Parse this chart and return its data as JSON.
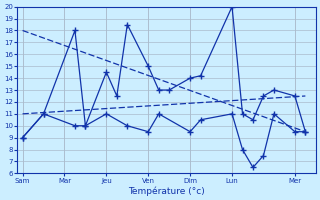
{
  "background_color": "#cceeff",
  "grid_color": "#aabbcc",
  "line_color": "#1133aa",
  "xlabel": "Température (°c)",
  "ylim": [
    6,
    20
  ],
  "yticks": [
    6,
    7,
    8,
    9,
    10,
    11,
    12,
    13,
    14,
    15,
    16,
    17,
    18,
    19,
    20
  ],
  "day_labels": [
    "Sam",
    "Mar",
    "Jeu",
    "Ven",
    "Dim",
    "Lun",
    "Mer"
  ],
  "day_positions": [
    0,
    4,
    8,
    12,
    16,
    20,
    26
  ],
  "xlim": [
    -0.5,
    28
  ],
  "upper_x": [
    0,
    2,
    5,
    6,
    8,
    9,
    10,
    12,
    13,
    14,
    16,
    17,
    20,
    21,
    22,
    23,
    24,
    26,
    27
  ],
  "upper_y": [
    9,
    11,
    18,
    10,
    14.5,
    12.5,
    18.5,
    15,
    13,
    13,
    14,
    14.2,
    20,
    11,
    10.5,
    12.5,
    13,
    12.5,
    9.5
  ],
  "lower_x": [
    0,
    2,
    5,
    6,
    8,
    10,
    12,
    13,
    16,
    17,
    20,
    21,
    22,
    23,
    24,
    26,
    27
  ],
  "lower_y": [
    9,
    11,
    10,
    10,
    11,
    10,
    9.5,
    11,
    9.5,
    10.5,
    11,
    8,
    6.5,
    7.5,
    11,
    9.5,
    9.5
  ],
  "trend1_x": [
    0,
    27
  ],
  "trend1_y": [
    18,
    9.5
  ],
  "trend2_x": [
    0,
    27
  ],
  "trend2_y": [
    11,
    12.5
  ]
}
